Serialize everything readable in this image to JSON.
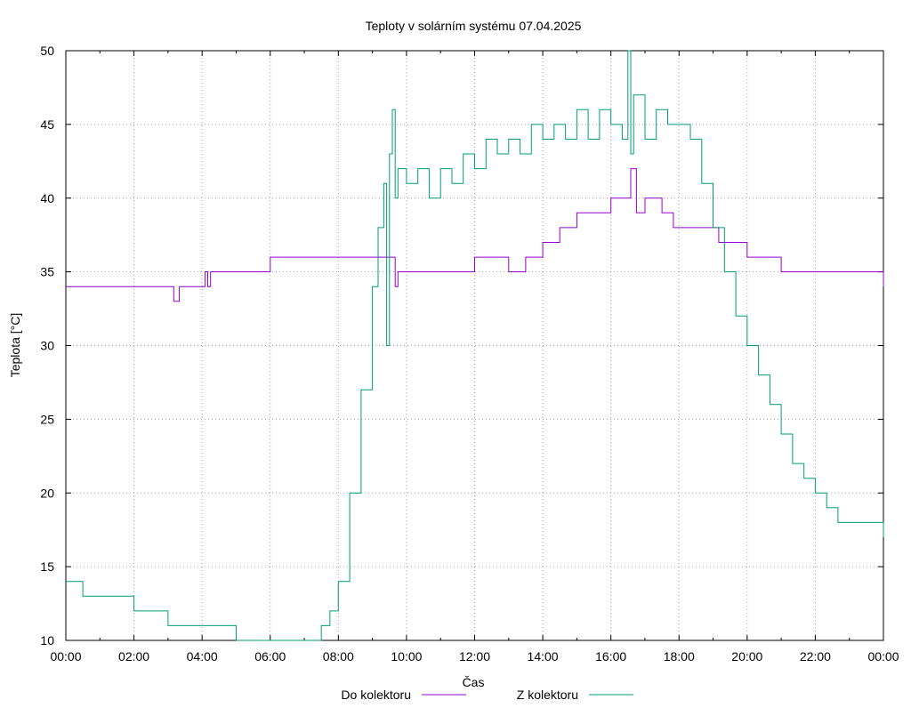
{
  "chart_data": {
    "type": "line",
    "title": "Teploty v solárním systému 07.04.2025",
    "xlabel": "Čas",
    "ylabel": "Teplota [°C]",
    "xlim": [
      "00:00",
      "24:00"
    ],
    "ylim": [
      10,
      50
    ],
    "x_ticks": [
      "00:00",
      "02:00",
      "04:00",
      "06:00",
      "08:00",
      "10:00",
      "12:00",
      "14:00",
      "16:00",
      "18:00",
      "20:00",
      "22:00",
      "00:00"
    ],
    "y_ticks": [
      10,
      15,
      20,
      25,
      30,
      35,
      40,
      45,
      50
    ],
    "grid": true,
    "legend_position": "bottom-center",
    "series": [
      {
        "name": "Do kolektoru",
        "color": "#9400d3",
        "x": [
          "00:00",
          "03:00",
          "03:10",
          "03:20",
          "04:05",
          "04:10",
          "04:15",
          "05:30",
          "06:00",
          "08:00",
          "09:00",
          "09:30",
          "09:40",
          "09:45",
          "10:00",
          "11:00",
          "11:30",
          "11:50",
          "12:00",
          "12:30",
          "13:00",
          "13:30",
          "13:50",
          "14:00",
          "14:30",
          "14:50",
          "15:00",
          "15:30",
          "16:00",
          "16:30",
          "16:35",
          "16:45",
          "17:00",
          "17:30",
          "17:50",
          "18:00",
          "18:30",
          "19:00",
          "19:10",
          "19:30",
          "20:00",
          "20:30",
          "20:45",
          "21:00",
          "22:00",
          "23:00",
          "23:50",
          "24:00"
        ],
        "y": [
          34,
          34,
          33,
          34,
          35,
          34,
          35,
          35,
          36,
          36,
          36,
          36,
          34,
          35,
          35,
          35,
          35,
          35,
          36,
          36,
          35,
          36,
          36,
          37,
          38,
          38,
          39,
          39,
          40,
          40,
          42,
          39,
          40,
          39,
          38,
          38,
          38,
          38,
          37,
          37,
          36,
          36,
          36,
          35,
          35,
          35,
          35,
          34
        ]
      },
      {
        "name": "Z kolektoru",
        "color": "#009e73",
        "x": [
          "00:00",
          "00:30",
          "01:00",
          "01:30",
          "02:00",
          "02:30",
          "03:00",
          "03:30",
          "04:00",
          "04:30",
          "05:00",
          "06:00",
          "07:00",
          "07:30",
          "07:45",
          "08:00",
          "08:20",
          "08:40",
          "09:00",
          "09:10",
          "09:20",
          "09:25",
          "09:30",
          "09:35",
          "09:40",
          "09:45",
          "10:00",
          "10:20",
          "10:40",
          "11:00",
          "11:20",
          "11:40",
          "12:00",
          "12:20",
          "12:40",
          "13:00",
          "13:20",
          "13:40",
          "14:00",
          "14:20",
          "14:40",
          "15:00",
          "15:20",
          "15:40",
          "16:00",
          "16:20",
          "16:30",
          "16:35",
          "16:40",
          "17:00",
          "17:20",
          "17:40",
          "18:00",
          "18:20",
          "18:40",
          "19:00",
          "19:20",
          "19:40",
          "20:00",
          "20:20",
          "20:40",
          "21:00",
          "21:20",
          "21:40",
          "22:00",
          "22:20",
          "22:40",
          "23:00",
          "23:20",
          "23:40",
          "24:00"
        ],
        "y": [
          14,
          13,
          13,
          13,
          12,
          12,
          11,
          11,
          11,
          11,
          10,
          10,
          10,
          11,
          12,
          14,
          20,
          27,
          34,
          38,
          41,
          30,
          43,
          46,
          40,
          42,
          41,
          42,
          40,
          42,
          41,
          43,
          42,
          44,
          43,
          44,
          43,
          45,
          44,
          45,
          44,
          46,
          44,
          46,
          45,
          44,
          50,
          43,
          47,
          44,
          46,
          45,
          45,
          44,
          41,
          38,
          35,
          32,
          30,
          28,
          26,
          24,
          22,
          21,
          20,
          19,
          18,
          18,
          18,
          18,
          17
        ]
      }
    ]
  }
}
